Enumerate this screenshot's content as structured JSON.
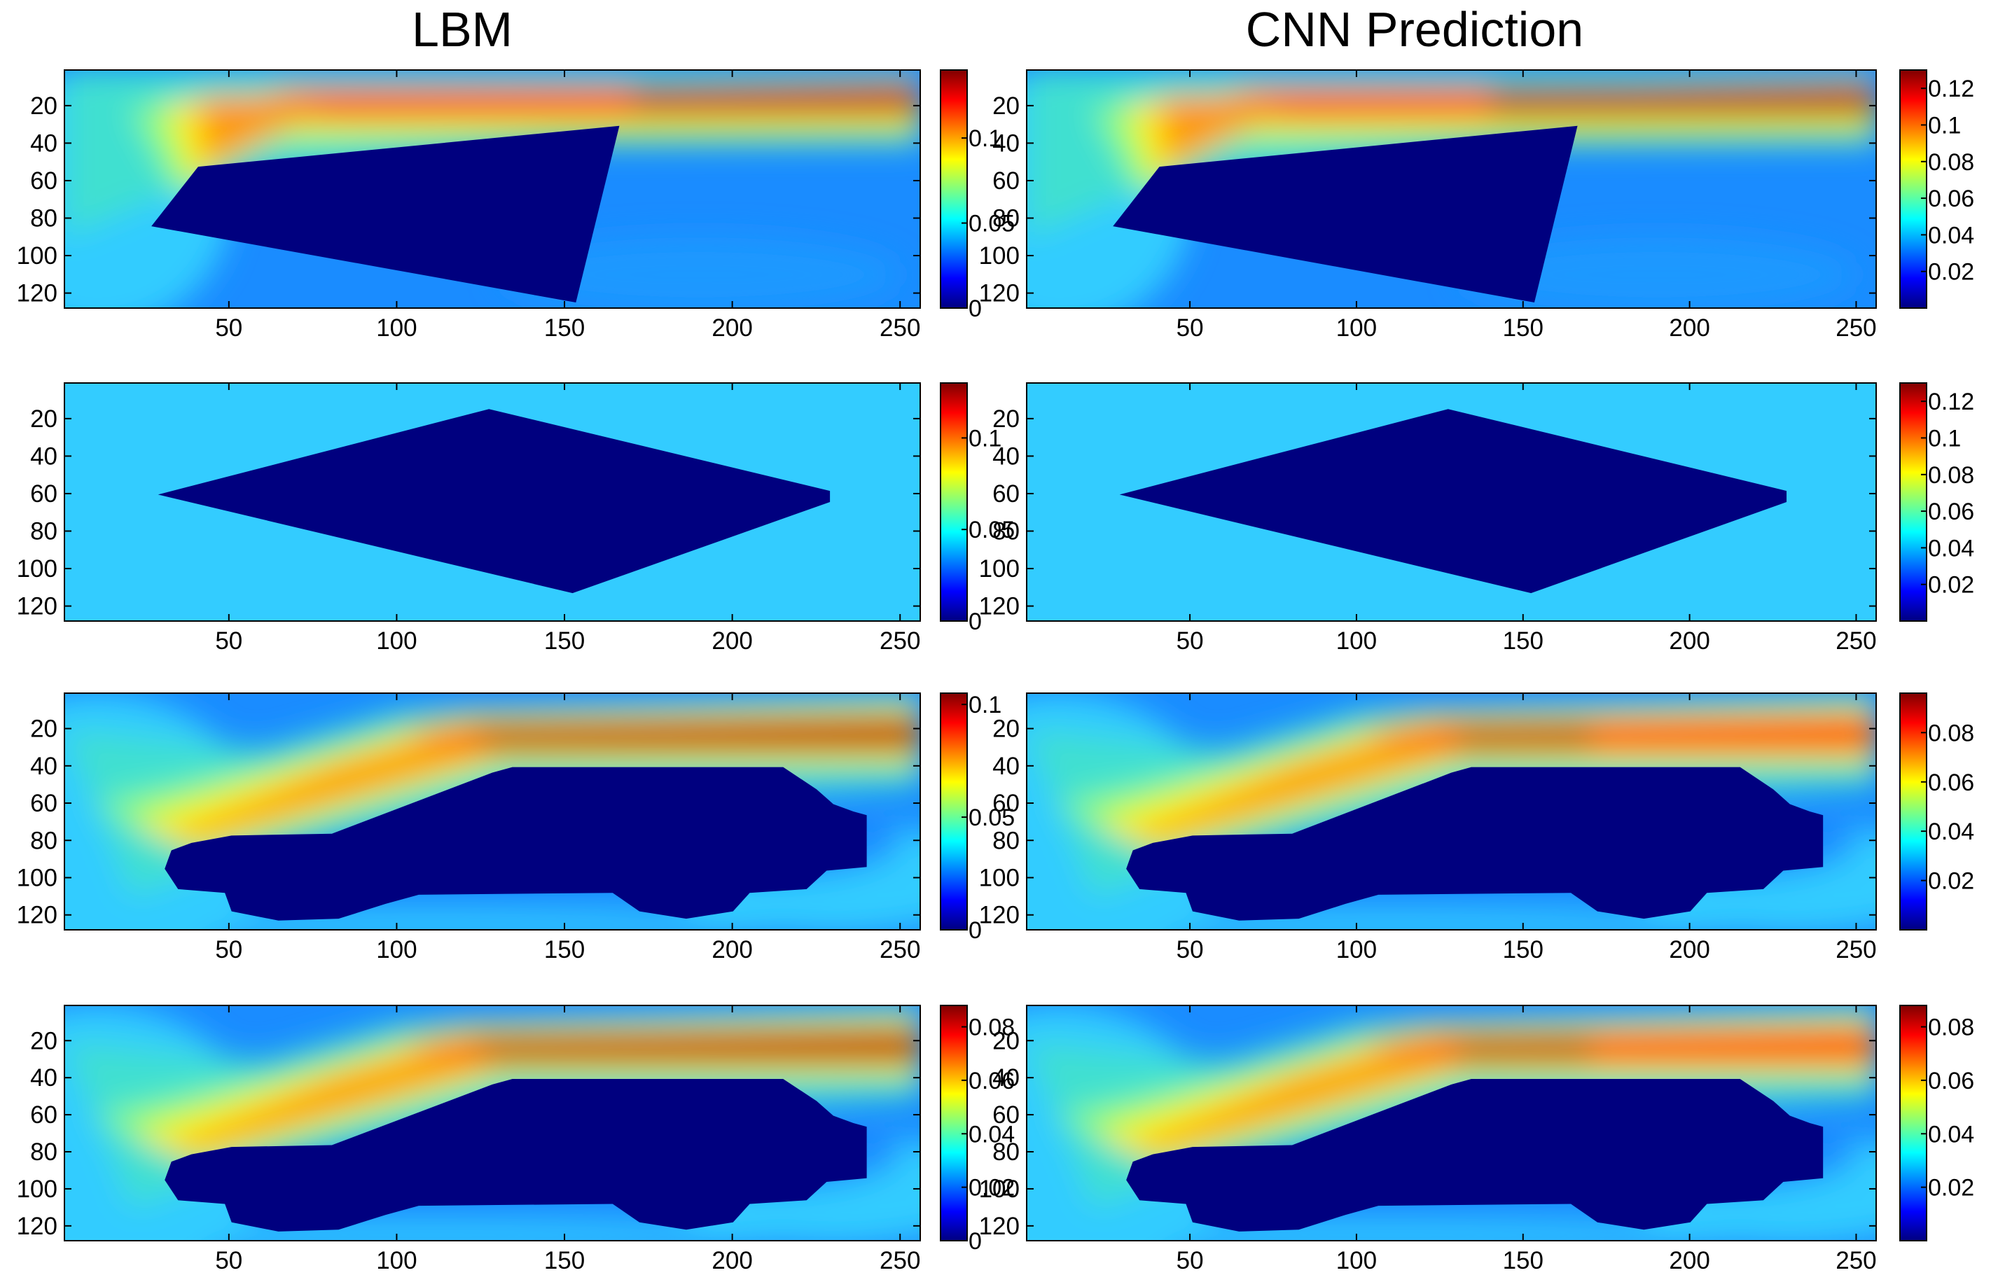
{
  "titles": {
    "left": "LBM",
    "right": "CNN Prediction"
  },
  "colormap": "jet",
  "colors": {
    "obstacle": "#00007f",
    "background": "#ffffff"
  },
  "chart_data": [
    {
      "type": "heatmap",
      "row": 0,
      "column": "left",
      "shape": "wedge",
      "x_ticks": [
        "50",
        "100",
        "150",
        "200",
        "250"
      ],
      "y_ticks": [
        "20",
        "40",
        "60",
        "80",
        "100",
        "120"
      ],
      "xlim": [
        1,
        256
      ],
      "ylim": [
        1,
        128
      ],
      "colorbar": {
        "range": [
          0,
          0.14
        ],
        "ticks": [
          "0",
          "0.05",
          "0.1"
        ],
        "tick_values": [
          0,
          0.05,
          0.1
        ]
      }
    },
    {
      "type": "heatmap",
      "row": 0,
      "column": "right",
      "shape": "wedge",
      "x_ticks": [
        "50",
        "100",
        "150",
        "200",
        "250"
      ],
      "y_ticks": [
        "20",
        "40",
        "60",
        "80",
        "100",
        "120"
      ],
      "xlim": [
        1,
        256
      ],
      "ylim": [
        1,
        128
      ],
      "colorbar": {
        "range": [
          0,
          0.13
        ],
        "ticks": [
          "0.02",
          "0.04",
          "0.06",
          "0.08",
          "0.1",
          "0.12"
        ],
        "tick_values": [
          0.02,
          0.04,
          0.06,
          0.08,
          0.1,
          0.12
        ]
      }
    },
    {
      "type": "heatmap",
      "row": 1,
      "column": "left",
      "shape": "diamond",
      "x_ticks": [
        "50",
        "100",
        "150",
        "200",
        "250"
      ],
      "y_ticks": [
        "20",
        "40",
        "60",
        "80",
        "100",
        "120"
      ],
      "xlim": [
        1,
        256
      ],
      "ylim": [
        1,
        128
      ],
      "colorbar": {
        "range": [
          0,
          0.13
        ],
        "ticks": [
          "0",
          "0.05",
          "0.1"
        ],
        "tick_values": [
          0,
          0.05,
          0.1
        ]
      }
    },
    {
      "type": "heatmap",
      "row": 1,
      "column": "right",
      "shape": "diamond",
      "x_ticks": [
        "50",
        "100",
        "150",
        "200",
        "250"
      ],
      "y_ticks": [
        "20",
        "40",
        "60",
        "80",
        "100",
        "120"
      ],
      "xlim": [
        1,
        256
      ],
      "ylim": [
        1,
        128
      ],
      "colorbar": {
        "range": [
          0,
          0.13
        ],
        "ticks": [
          "0.02",
          "0.04",
          "0.06",
          "0.08",
          "0.1",
          "0.12"
        ],
        "tick_values": [
          0.02,
          0.04,
          0.06,
          0.08,
          0.1,
          0.12
        ]
      }
    },
    {
      "type": "heatmap",
      "row": 2,
      "column": "left",
      "shape": "car",
      "x_ticks": [
        "50",
        "100",
        "150",
        "200",
        "250"
      ],
      "y_ticks": [
        "20",
        "40",
        "60",
        "80",
        "100",
        "120"
      ],
      "xlim": [
        1,
        256
      ],
      "ylim": [
        1,
        128
      ],
      "colorbar": {
        "range": [
          0,
          0.105
        ],
        "ticks": [
          "0",
          "0.05",
          "0.1"
        ],
        "tick_values": [
          0,
          0.05,
          0.1
        ]
      }
    },
    {
      "type": "heatmap",
      "row": 2,
      "column": "right",
      "shape": "car",
      "x_ticks": [
        "50",
        "100",
        "150",
        "200",
        "250"
      ],
      "y_ticks": [
        "20",
        "40",
        "60",
        "80",
        "100",
        "120"
      ],
      "xlim": [
        1,
        256
      ],
      "ylim": [
        1,
        128
      ],
      "colorbar": {
        "range": [
          0,
          0.096
        ],
        "ticks": [
          "0.02",
          "0.04",
          "0.06",
          "0.08"
        ],
        "tick_values": [
          0.02,
          0.04,
          0.06,
          0.08
        ]
      }
    },
    {
      "type": "heatmap",
      "row": 3,
      "column": "left",
      "shape": "car",
      "x_ticks": [
        "50",
        "100",
        "150",
        "200",
        "250"
      ],
      "y_ticks": [
        "20",
        "40",
        "60",
        "80",
        "100",
        "120"
      ],
      "xlim": [
        1,
        256
      ],
      "ylim": [
        1,
        128
      ],
      "colorbar": {
        "range": [
          0,
          0.088
        ],
        "ticks": [
          "0",
          "0.02",
          "0.04",
          "0.06",
          "0.08"
        ],
        "tick_values": [
          0,
          0.02,
          0.04,
          0.06,
          0.08
        ]
      }
    },
    {
      "type": "heatmap",
      "row": 3,
      "column": "right",
      "shape": "car",
      "x_ticks": [
        "50",
        "100",
        "150",
        "200",
        "250"
      ],
      "y_ticks": [
        "20",
        "40",
        "60",
        "80",
        "100",
        "120"
      ],
      "xlim": [
        1,
        256
      ],
      "ylim": [
        1,
        128
      ],
      "colorbar": {
        "range": [
          0,
          0.088
        ],
        "ticks": [
          "0.02",
          "0.04",
          "0.06",
          "0.08"
        ],
        "tick_values": [
          0.02,
          0.04,
          0.06,
          0.08
        ]
      }
    }
  ]
}
